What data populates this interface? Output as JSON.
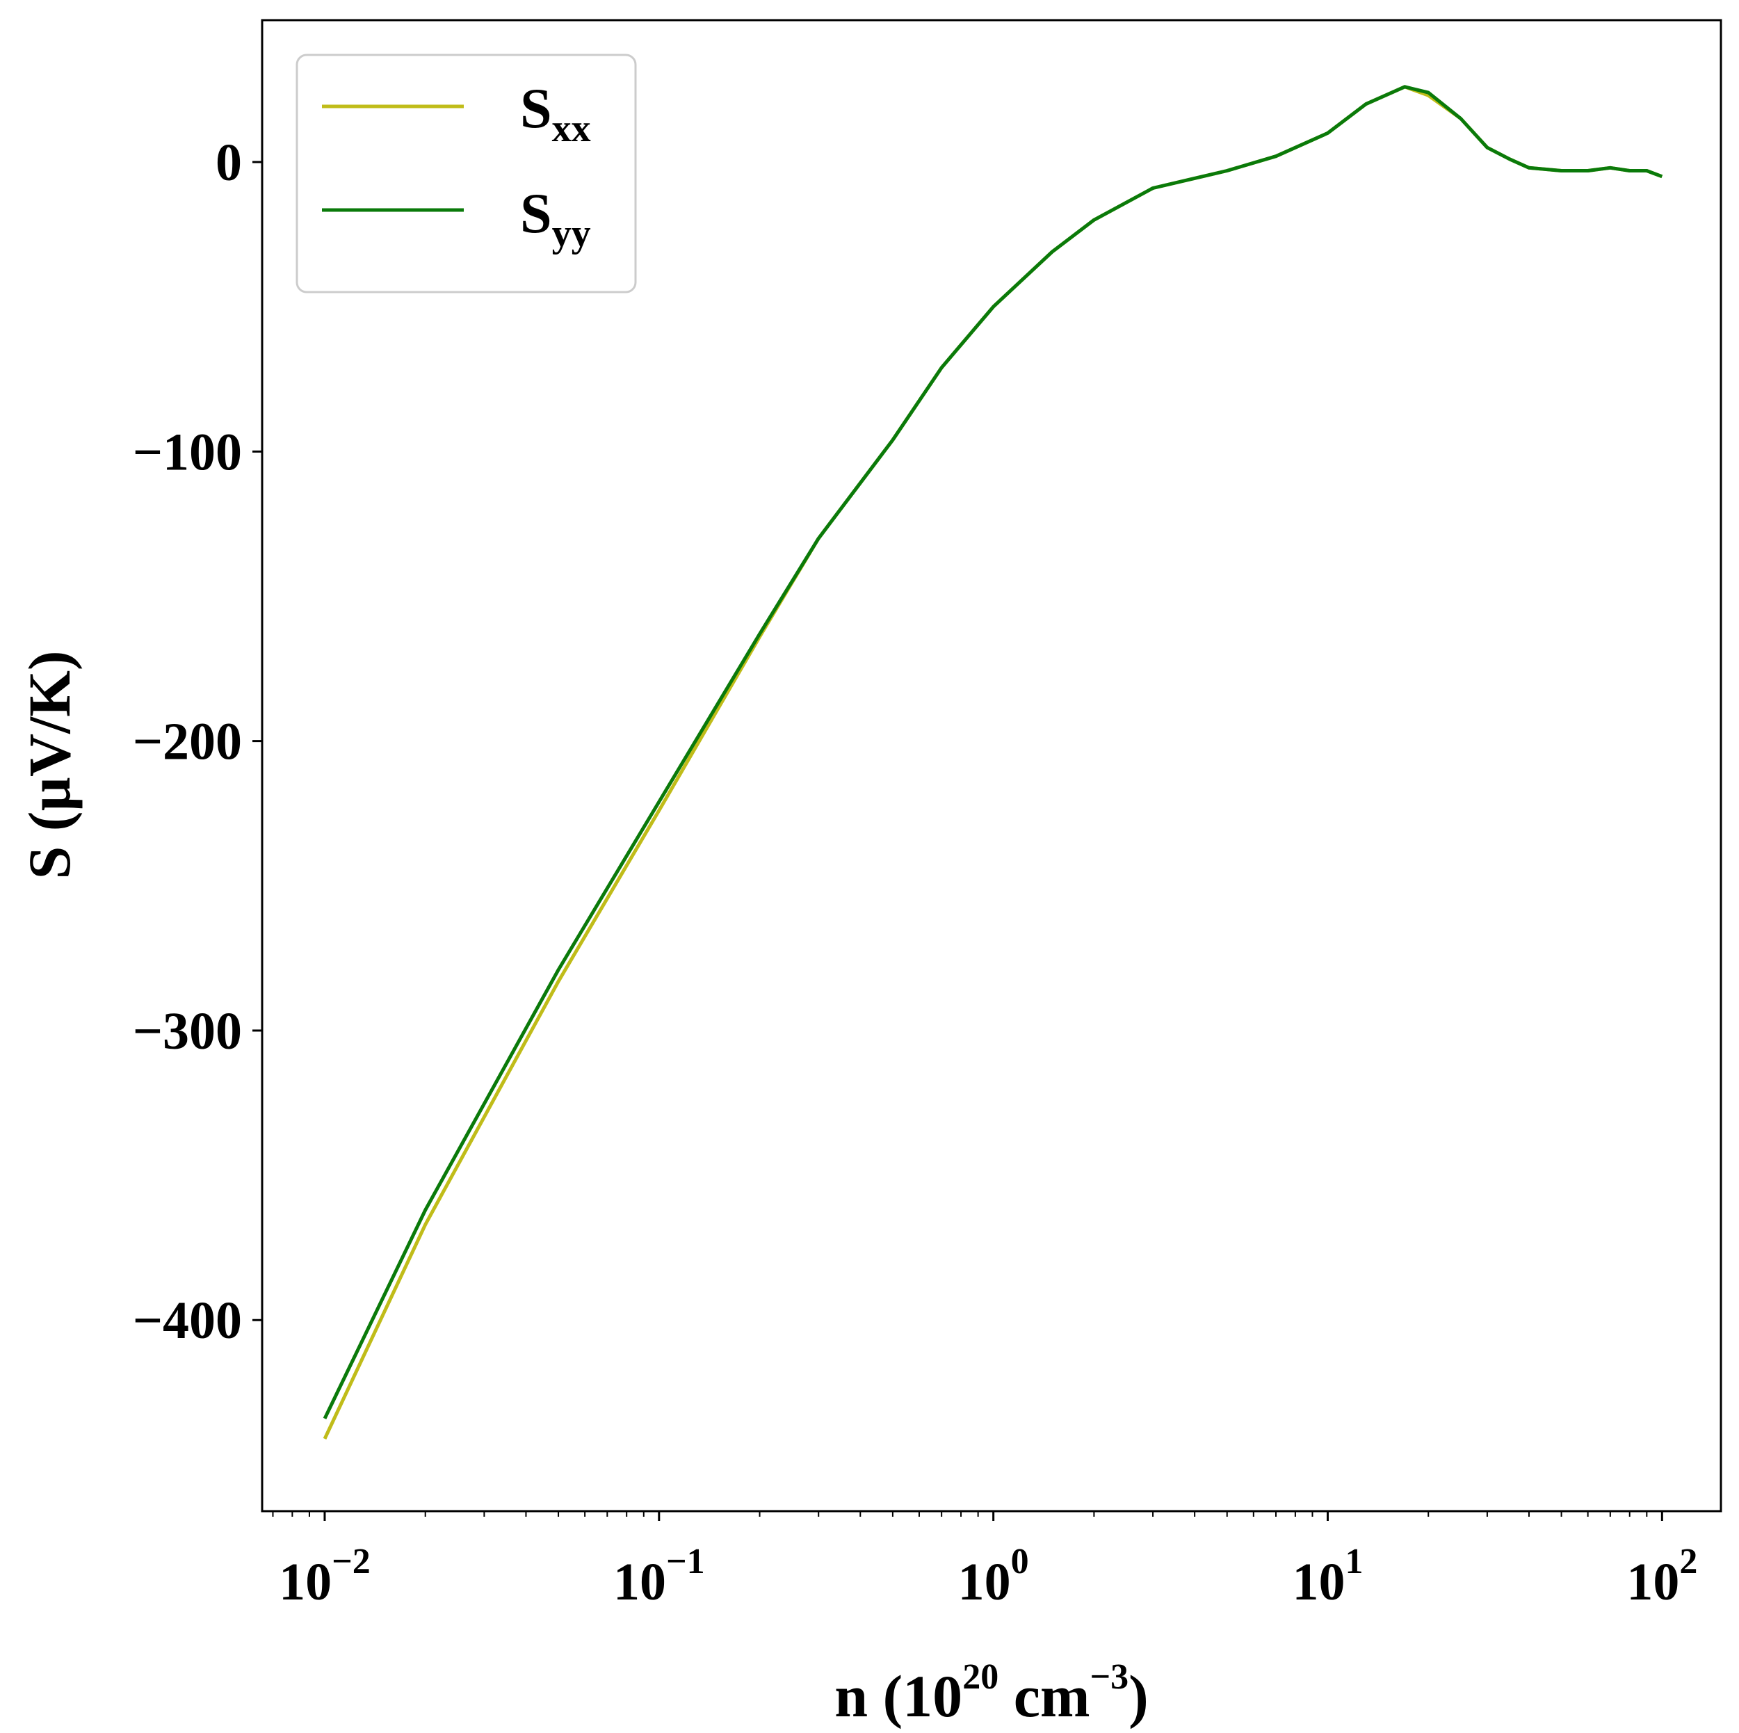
{
  "chart_data": {
    "type": "line",
    "xscale": "log",
    "xlim": [
      0.0065,
      150
    ],
    "ylim": [
      -466,
      49
    ],
    "xlabel": {
      "base": "n (10",
      "sup1": "20",
      "mid": " cm",
      "sup2": "−3",
      "end": ")"
    },
    "ylabel": "S (µV/K)",
    "x_ticks": [
      {
        "value": 0.01,
        "base": "10",
        "exp": "−2"
      },
      {
        "value": 0.1,
        "base": "10",
        "exp": "−1"
      },
      {
        "value": 1,
        "base": "10",
        "exp": "0"
      },
      {
        "value": 10,
        "base": "10",
        "exp": "1"
      },
      {
        "value": 100,
        "base": "10",
        "exp": "2"
      }
    ],
    "y_ticks": [
      {
        "value": 0,
        "label": "0"
      },
      {
        "value": -100,
        "label": "−100"
      },
      {
        "value": -200,
        "label": "−200"
      },
      {
        "value": -300,
        "label": "−300"
      },
      {
        "value": -400,
        "label": "−400"
      }
    ],
    "legend_position": "top-left",
    "series": [
      {
        "name": "S",
        "subscript": "xx",
        "color": "#c0bc19",
        "points": [
          [
            0.01,
            -441
          ],
          [
            0.02,
            -367
          ],
          [
            0.05,
            -283
          ],
          [
            0.1,
            -224
          ],
          [
            0.2,
            -164
          ],
          [
            0.3,
            -130
          ],
          [
            0.5,
            -96
          ],
          [
            0.7,
            -71
          ],
          [
            1,
            -50
          ],
          [
            1.5,
            -31
          ],
          [
            2,
            -20
          ],
          [
            3,
            -9
          ],
          [
            5,
            -3
          ],
          [
            7,
            2
          ],
          [
            10,
            10
          ],
          [
            13,
            20
          ],
          [
            17,
            26
          ],
          [
            20,
            23
          ],
          [
            25,
            15
          ],
          [
            30,
            5
          ],
          [
            35,
            1
          ],
          [
            40,
            -2
          ],
          [
            50,
            -3
          ],
          [
            60,
            -3
          ],
          [
            70,
            -2
          ],
          [
            80,
            -3
          ],
          [
            90,
            -3
          ],
          [
            100,
            -5
          ]
        ]
      },
      {
        "name": "S",
        "subscript": "yy",
        "color": "#0a7a0a",
        "points": [
          [
            0.01,
            -434
          ],
          [
            0.02,
            -362
          ],
          [
            0.05,
            -279
          ],
          [
            0.1,
            -221
          ],
          [
            0.2,
            -163
          ],
          [
            0.3,
            -130
          ],
          [
            0.5,
            -96
          ],
          [
            0.7,
            -71
          ],
          [
            1,
            -50
          ],
          [
            1.5,
            -31
          ],
          [
            2,
            -20
          ],
          [
            3,
            -9
          ],
          [
            5,
            -3
          ],
          [
            7,
            2
          ],
          [
            10,
            10
          ],
          [
            13,
            20
          ],
          [
            17,
            26
          ],
          [
            20,
            24
          ],
          [
            25,
            15
          ],
          [
            30,
            5
          ],
          [
            35,
            1
          ],
          [
            40,
            -2
          ],
          [
            50,
            -3
          ],
          [
            60,
            -3
          ],
          [
            70,
            -2
          ],
          [
            80,
            -3
          ],
          [
            90,
            -3
          ],
          [
            100,
            -5
          ]
        ]
      }
    ]
  }
}
